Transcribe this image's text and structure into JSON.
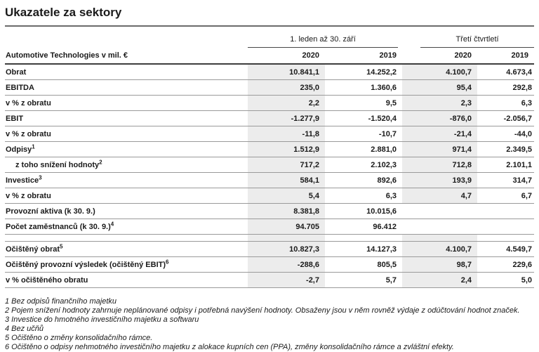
{
  "title": "Ukazatele za sektory",
  "table": {
    "label_header": "Automotive Technologies v mil. €",
    "col_groups": [
      {
        "label": "1. leden až 30. září"
      },
      {
        "label": "Třetí čtvrtletí"
      }
    ],
    "year_headers": [
      "2020",
      "2019",
      "2020",
      "2019"
    ],
    "sections": [
      {
        "rows": [
          {
            "label": "Obrat",
            "sup": "",
            "indent": false,
            "q3_shaded": true,
            "values": [
              "10.841,1",
              "14.252,2",
              "4.100,7",
              "4.673,4"
            ]
          },
          {
            "label": "EBITDA",
            "sup": "",
            "indent": false,
            "q3_shaded": true,
            "values": [
              "235,0",
              "1.360,6",
              "95,4",
              "292,8"
            ]
          },
          {
            "label": "v % z obratu",
            "sup": "",
            "indent": false,
            "q3_shaded": true,
            "values": [
              "2,2",
              "9,5",
              "2,3",
              "6,3"
            ]
          },
          {
            "label": "EBIT",
            "sup": "",
            "indent": false,
            "q3_shaded": true,
            "values": [
              "-1.277,9",
              "-1.520,4",
              "-876,0",
              "-2.056,7"
            ]
          },
          {
            "label": "v % z obratu",
            "sup": "",
            "indent": false,
            "q3_shaded": true,
            "values": [
              "-11,8",
              "-10,7",
              "-21,4",
              "-44,0"
            ]
          },
          {
            "label": "Odpisy",
            "sup": "1",
            "indent": false,
            "q3_shaded": true,
            "values": [
              "1.512,9",
              "2.881,0",
              "971,4",
              "2.349,5"
            ]
          },
          {
            "label": "z toho snížení hodnoty",
            "sup": "2",
            "indent": true,
            "q3_shaded": true,
            "values": [
              "717,2",
              "2.102,3",
              "712,8",
              "2.101,1"
            ]
          },
          {
            "label": "Investice",
            "sup": "3",
            "indent": false,
            "q3_shaded": true,
            "values": [
              "584,1",
              "892,6",
              "193,9",
              "314,7"
            ]
          },
          {
            "label": "v % z obratu",
            "sup": "",
            "indent": false,
            "q3_shaded": true,
            "values": [
              "5,4",
              "6,3",
              "4,7",
              "6,7"
            ]
          },
          {
            "label": "Provozní aktiva (k 30. 9.)",
            "sup": "",
            "indent": false,
            "q3_shaded": false,
            "values": [
              "8.381,8",
              "10.015,6",
              "",
              ""
            ]
          },
          {
            "label": "Počet zaměstnanců (k 30. 9.)",
            "sup": "4",
            "indent": false,
            "q3_shaded": false,
            "values": [
              "94.705",
              "96.412",
              "",
              ""
            ]
          }
        ]
      },
      {
        "rows": [
          {
            "label": "Očištěný obrat",
            "sup": "5",
            "indent": false,
            "q3_shaded": true,
            "values": [
              "10.827,3",
              "14.127,3",
              "4.100,7",
              "4.549,7"
            ]
          },
          {
            "label": "Očištěný provozní výsledek (očištěný EBIT)",
            "sup": "6",
            "indent": false,
            "q3_shaded": true,
            "values": [
              "-288,6",
              "805,5",
              "98,7",
              "229,6"
            ]
          },
          {
            "label": "v % očištěného obratu",
            "sup": "",
            "indent": false,
            "q3_shaded": true,
            "values": [
              "-2,7",
              "5,7",
              "2,4",
              "5,0"
            ]
          }
        ]
      }
    ]
  },
  "footnotes": [
    "1 Bez odpisů finančního majetku",
    "2 Pojem snížení hodnoty zahrnuje neplánované odpisy i potřebná navýšení hodnoty. Obsaženy jsou v něm rovněž výdaje z odúčtování hodnot značek.",
    "3 Investice do hmotného investičního majetku a softwaru",
    "4 Bez učňů",
    "5 Očištěno o změny konsolidačního rámce.",
    "6 Očištěno o odpisy nehmotného investičního majetku z alokace kupních cen (PPA), změny konsolidačního rámce a zvláštní efekty."
  ],
  "colors": {
    "shaded_column": "#ececec",
    "row_separator": "#9a9a9a",
    "heavy_rule": "#3e3e3e",
    "title_rule": "#6b6b6b",
    "text": "#1a1a1a"
  }
}
